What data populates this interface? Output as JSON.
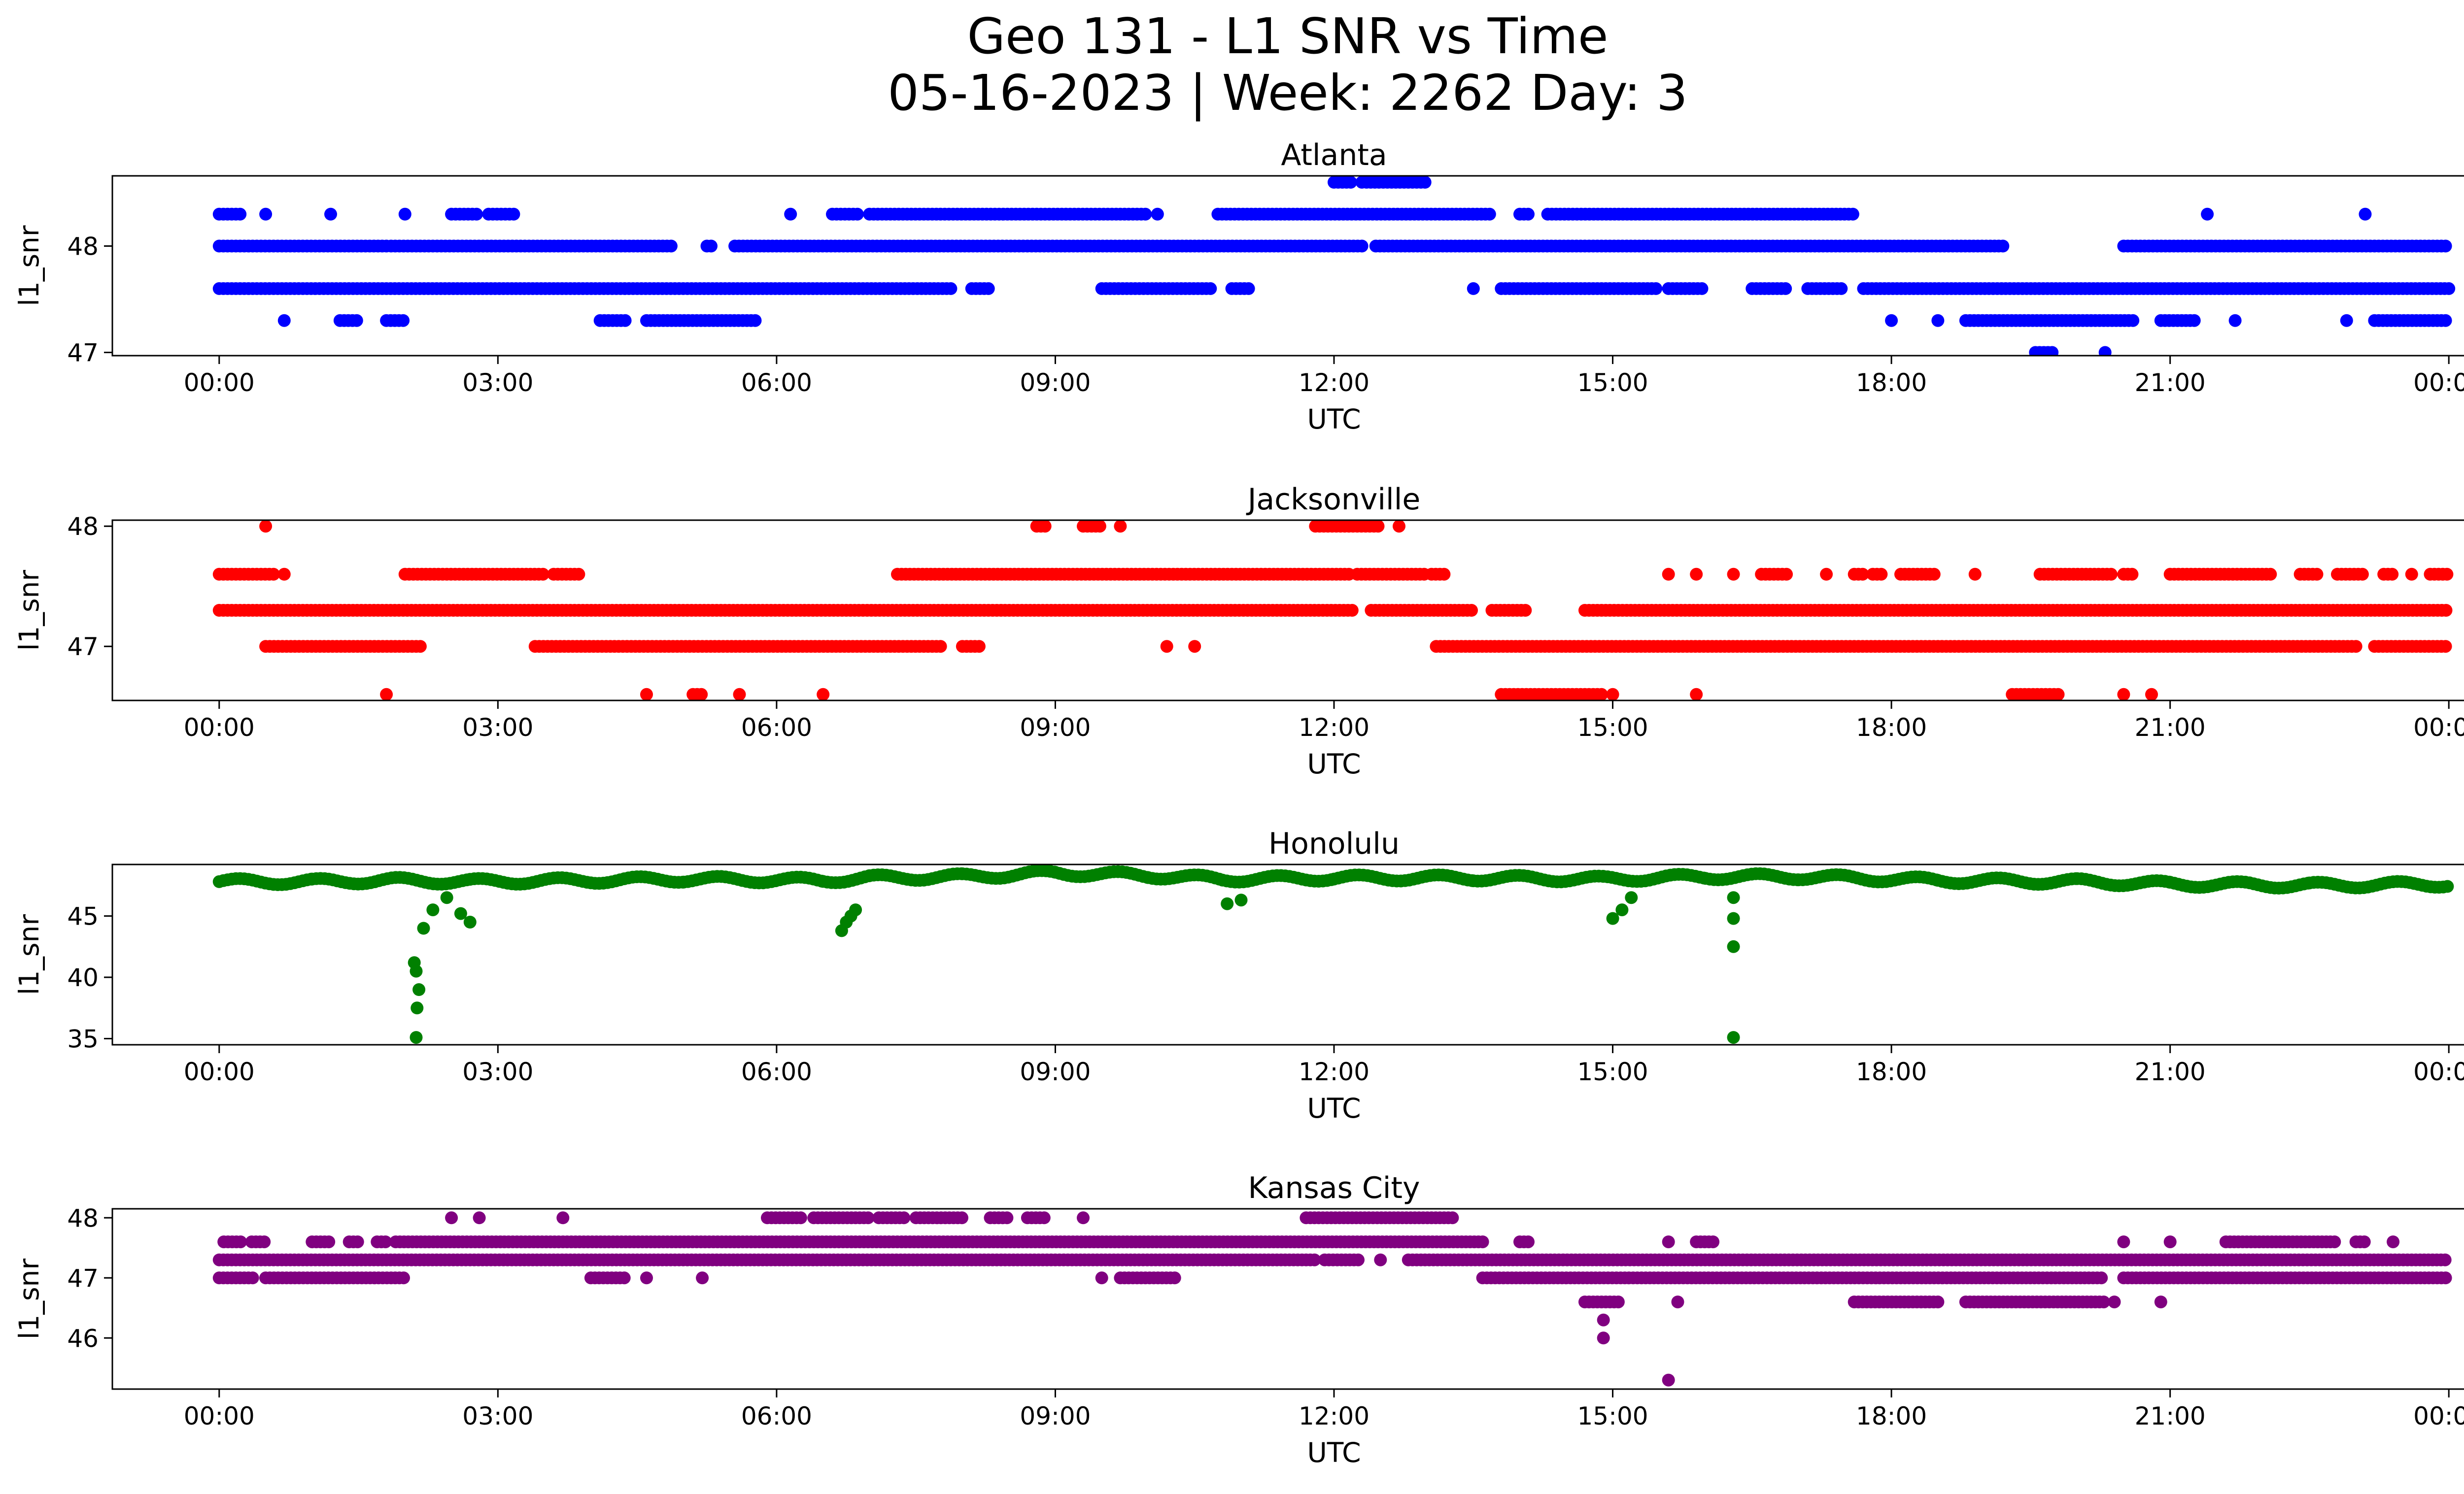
{
  "figure": {
    "title_line1": "Geo 131 - L1 SNR vs Time",
    "title_line2": "05-16-2023 | Week: 2262 Day: 3"
  },
  "chart_data": [
    {
      "type": "scatter",
      "title": "Atlanta",
      "xlabel": "UTC",
      "ylabel": "l1_snr",
      "color": "#0000ff",
      "x_ticks": [
        "00:00",
        "03:00",
        "06:00",
        "09:00",
        "12:00",
        "15:00",
        "18:00",
        "21:00",
        "00:00"
      ],
      "y_ticks": [
        47,
        48
      ],
      "xlim_hours": [
        -1.15,
        25.15
      ],
      "ylim": [
        46.97,
        48.66
      ],
      "grid": false,
      "series": [
        {
          "level": 48.0,
          "segments": [
            [
              0.0,
              1.8
            ],
            [
              1.85,
              4.9
            ],
            [
              5.25,
              5.3
            ],
            [
              5.55,
              12.3
            ],
            [
              12.45,
              19.2
            ],
            [
              20.5,
              24.0
            ]
          ]
        },
        {
          "level": 47.6,
          "segments": [
            [
              0.0,
              7.9
            ],
            [
              8.1,
              8.3
            ],
            [
              9.5,
              10.7
            ],
            [
              10.9,
              11.1
            ],
            [
              13.5,
              13.5
            ],
            [
              13.8,
              15.5
            ],
            [
              15.6,
              16.0
            ],
            [
              16.5,
              16.9
            ],
            [
              17.1,
              17.5
            ],
            [
              17.7,
              24.0
            ]
          ]
        },
        {
          "level": 48.3,
          "segments": [
            [
              0.0,
              0.25
            ],
            [
              0.5,
              0.5
            ],
            [
              1.2,
              1.2
            ],
            [
              2.0,
              2.0
            ],
            [
              2.5,
              2.8
            ],
            [
              2.9,
              3.2
            ],
            [
              6.15,
              6.15
            ],
            [
              6.6,
              6.9
            ],
            [
              7.0,
              10.0
            ],
            [
              10.1,
              10.1
            ],
            [
              10.75,
              13.7
            ],
            [
              14.0,
              14.1
            ],
            [
              14.3,
              17.6
            ],
            [
              21.4,
              21.4
            ],
            [
              23.1,
              23.1
            ]
          ]
        },
        {
          "level": 47.3,
          "segments": [
            [
              0.7,
              0.7
            ],
            [
              1.3,
              1.5
            ],
            [
              1.8,
              2.0
            ],
            [
              4.1,
              4.4
            ],
            [
              4.6,
              5.8
            ],
            [
              18.0,
              18.0
            ],
            [
              18.5,
              18.5
            ],
            [
              18.8,
              20.6
            ],
            [
              20.9,
              21.3
            ],
            [
              21.7,
              21.7
            ],
            [
              22.9,
              22.9
            ],
            [
              23.2,
              24.0
            ]
          ]
        },
        {
          "level": 48.6,
          "segments": [
            [
              12.0,
              12.2
            ],
            [
              12.3,
              12.3
            ],
            [
              12.35,
              13.0
            ]
          ]
        },
        {
          "level": 47.0,
          "segments": [
            [
              19.55,
              19.75
            ],
            [
              20.3,
              20.3
            ]
          ]
        }
      ]
    },
    {
      "type": "scatter",
      "title": "Jacksonville",
      "xlabel": "UTC",
      "ylabel": "l1_snr",
      "color": "#ff0000",
      "x_ticks": [
        "00:00",
        "03:00",
        "06:00",
        "09:00",
        "12:00",
        "15:00",
        "18:00",
        "21:00",
        "00:00"
      ],
      "y_ticks": [
        47,
        48
      ],
      "xlim_hours": [
        -1.15,
        25.15
      ],
      "ylim": [
        46.55,
        48.05
      ],
      "grid": false,
      "series": [
        {
          "level": 47.3,
          "segments": [
            [
              0.0,
              12.2
            ],
            [
              12.4,
              13.5
            ],
            [
              13.7,
              14.1
            ],
            [
              14.7,
              24.0
            ]
          ]
        },
        {
          "level": 47.0,
          "segments": [
            [
              0.5,
              2.2
            ],
            [
              3.4,
              7.8
            ],
            [
              8.0,
              8.2
            ],
            [
              10.2,
              10.2
            ],
            [
              10.5,
              10.5
            ],
            [
              13.1,
              23.0
            ],
            [
              23.2,
              24.0
            ]
          ]
        },
        {
          "level": 47.6,
          "segments": [
            [
              0.0,
              0.6
            ],
            [
              0.7,
              0.7
            ],
            [
              2.0,
              3.5
            ],
            [
              3.6,
              3.9
            ],
            [
              7.3,
              12.2
            ],
            [
              12.25,
              13.0
            ],
            [
              13.05,
              13.2
            ],
            [
              15.6,
              15.6
            ],
            [
              15.9,
              15.9
            ],
            [
              16.3,
              16.3
            ],
            [
              16.6,
              16.9
            ],
            [
              17.3,
              17.3
            ],
            [
              17.6,
              17.7
            ],
            [
              17.8,
              17.9
            ],
            [
              18.1,
              18.5
            ],
            [
              18.9,
              18.9
            ],
            [
              19.6,
              20.4
            ],
            [
              20.5,
              20.6
            ],
            [
              21.0,
              22.1
            ],
            [
              22.4,
              22.6
            ],
            [
              22.8,
              23.1
            ],
            [
              23.3,
              23.4
            ],
            [
              23.6,
              23.6
            ],
            [
              23.8,
              24.0
            ]
          ]
        },
        {
          "level": 48.0,
          "segments": [
            [
              0.5,
              0.5
            ],
            [
              8.8,
              8.9
            ],
            [
              9.3,
              9.5
            ],
            [
              9.7,
              9.7
            ],
            [
              11.8,
              12.5
            ],
            [
              12.7,
              12.7
            ]
          ]
        },
        {
          "level": 46.6,
          "segments": [
            [
              1.8,
              1.8
            ],
            [
              4.6,
              4.6
            ],
            [
              5.1,
              5.2
            ],
            [
              5.6,
              5.6
            ],
            [
              6.5,
              6.5
            ],
            [
              13.8,
              14.9
            ],
            [
              15.0,
              15.0
            ],
            [
              15.9,
              15.9
            ],
            [
              19.3,
              19.8
            ],
            [
              20.5,
              20.5
            ],
            [
              20.8,
              20.8
            ]
          ]
        }
      ]
    },
    {
      "type": "scatter",
      "title": "Honolulu",
      "xlabel": "UTC",
      "ylabel": "l1_snr",
      "color": "#008000",
      "x_ticks": [
        "00:00",
        "03:00",
        "06:00",
        "09:00",
        "12:00",
        "15:00",
        "18:00",
        "21:00",
        "00:00"
      ],
      "y_ticks": [
        35,
        40,
        45
      ],
      "xlim_hours": [
        -1.15,
        25.15
      ],
      "ylim": [
        34.5,
        49.2
      ],
      "grid": false,
      "series": [
        {
          "name_hidden": "baseline",
          "points": [
            [
              0.0,
              47.8
            ],
            [
              1.0,
              47.8
            ],
            [
              1.9,
              47.9
            ],
            [
              2.7,
              47.8
            ],
            [
              4.0,
              47.9
            ],
            [
              5.0,
              48.0
            ],
            [
              6.5,
              47.9
            ],
            [
              7.0,
              48.1
            ],
            [
              8.0,
              48.2
            ],
            [
              9.0,
              48.5
            ],
            [
              10.0,
              48.3
            ],
            [
              10.8,
              48.0
            ],
            [
              12.0,
              48.1
            ],
            [
              13.5,
              48.1
            ],
            [
              14.9,
              48.0
            ],
            [
              16.0,
              48.2
            ],
            [
              17.0,
              48.2
            ],
            [
              18.5,
              47.9
            ],
            [
              20.0,
              47.8
            ],
            [
              21.0,
              47.6
            ],
            [
              22.5,
              47.5
            ],
            [
              24.0,
              47.6
            ]
          ]
        },
        {
          "name_hidden": "dips",
          "points": [
            [
              2.1,
              41.2
            ],
            [
              2.12,
              40.5
            ],
            [
              2.15,
              39.0
            ],
            [
              2.13,
              37.5
            ],
            [
              2.12,
              35.1
            ],
            [
              2.2,
              44.0
            ],
            [
              2.3,
              45.5
            ],
            [
              2.45,
              46.5
            ],
            [
              2.6,
              45.2
            ],
            [
              2.7,
              44.5
            ],
            [
              6.7,
              43.8
            ],
            [
              6.75,
              44.5
            ],
            [
              6.8,
              45.0
            ],
            [
              6.85,
              45.5
            ],
            [
              10.85,
              46.0
            ],
            [
              11.0,
              46.3
            ],
            [
              15.0,
              44.8
            ],
            [
              15.1,
              45.5
            ],
            [
              15.2,
              46.5
            ],
            [
              16.3,
              42.5
            ],
            [
              16.3,
              44.8
            ],
            [
              16.3,
              46.5
            ],
            [
              16.3,
              35.1
            ]
          ]
        }
      ]
    },
    {
      "type": "scatter",
      "title": "Kansas City",
      "xlabel": "UTC",
      "ylabel": "l1_snr",
      "color": "#800080",
      "x_ticks": [
        "00:00",
        "03:00",
        "06:00",
        "09:00",
        "12:00",
        "15:00",
        "18:00",
        "21:00",
        "00:00"
      ],
      "y_ticks": [
        46,
        47,
        48
      ],
      "xlim_hours": [
        -1.15,
        25.15
      ],
      "ylim": [
        45.15,
        48.15
      ],
      "grid": false,
      "series": [
        {
          "level": 47.3,
          "segments": [
            [
              0.0,
              11.8
            ],
            [
              11.9,
              12.3
            ],
            [
              12.5,
              12.5
            ],
            [
              12.8,
              24.0
            ]
          ]
        },
        {
          "level": 47.0,
          "segments": [
            [
              0.0,
              0.4
            ],
            [
              0.5,
              2.0
            ],
            [
              4.0,
              4.4
            ],
            [
              4.6,
              4.6
            ],
            [
              5.2,
              5.2
            ],
            [
              9.5,
              9.5
            ],
            [
              9.7,
              10.3
            ],
            [
              13.6,
              20.3
            ],
            [
              20.5,
              24.0
            ]
          ]
        },
        {
          "level": 47.6,
          "segments": [
            [
              0.05,
              0.25
            ],
            [
              0.35,
              0.5
            ],
            [
              1.0,
              1.2
            ],
            [
              1.4,
              1.5
            ],
            [
              1.7,
              1.8
            ],
            [
              1.9,
              13.6
            ],
            [
              14.0,
              14.1
            ],
            [
              15.6,
              15.6
            ],
            [
              15.9,
              16.1
            ],
            [
              20.5,
              20.5
            ],
            [
              21.0,
              21.0
            ],
            [
              21.6,
              22.8
            ],
            [
              23.0,
              23.1
            ],
            [
              23.4,
              23.4
            ]
          ]
        },
        {
          "level": 48.0,
          "segments": [
            [
              2.5,
              2.5
            ],
            [
              2.8,
              2.8
            ],
            [
              3.7,
              3.7
            ],
            [
              5.9,
              6.3
            ],
            [
              6.4,
              7.0
            ],
            [
              7.1,
              7.4
            ],
            [
              7.5,
              8.0
            ],
            [
              8.3,
              8.5
            ],
            [
              8.7,
              8.9
            ],
            [
              9.3,
              9.3
            ],
            [
              11.7,
              13.3
            ]
          ]
        },
        {
          "level": 46.6,
          "segments": [
            [
              14.7,
              15.1
            ],
            [
              15.7,
              15.7
            ],
            [
              17.6,
              18.5
            ],
            [
              18.8,
              20.3
            ],
            [
              20.4,
              20.4
            ],
            [
              20.9,
              20.9
            ]
          ]
        },
        {
          "level": 46.3,
          "segments": [
            [
              14.9,
              14.9
            ]
          ]
        },
        {
          "level": 46.0,
          "segments": [
            [
              14.9,
              14.9
            ]
          ]
        },
        {
          "level": 45.3,
          "segments": [
            [
              15.6,
              15.6
            ]
          ]
        }
      ]
    }
  ]
}
